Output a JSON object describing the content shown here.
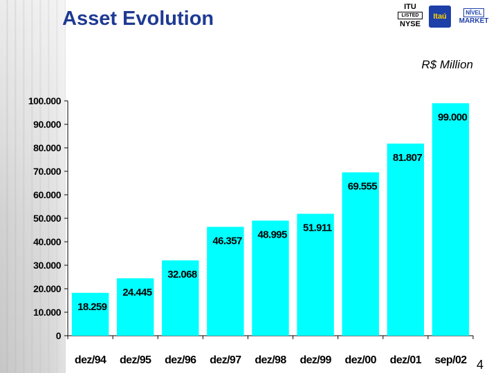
{
  "header": {
    "title": "Asset Evolution",
    "unit_label": "R$ Million",
    "page_number": "4"
  },
  "logos": {
    "itu_text": "ITU",
    "listed_text": "LISTED",
    "nyse_text": "NYSE",
    "itau_text": "Itaú",
    "market_level_text": "NÍVEL",
    "market_text": "MARKET"
  },
  "chart_data": {
    "type": "bar",
    "categories": [
      "dez/94",
      "dez/95",
      "dez/96",
      "dez/97",
      "dez/98",
      "dez/99",
      "dez/00",
      "dez/01",
      "sep/02"
    ],
    "values": [
      18259,
      24445,
      32068,
      46357,
      48995,
      51911,
      69555,
      81807,
      99000
    ],
    "data_labels": [
      "18.259",
      "24.445",
      "32.068",
      "46.357",
      "48.995",
      "51.911",
      "69.555",
      "81.807",
      "99.000"
    ],
    "y_ticks": [
      0,
      10000,
      20000,
      30000,
      40000,
      50000,
      60000,
      70000,
      80000,
      90000,
      100000
    ],
    "y_tick_labels": [
      "0",
      "10.000",
      "20.000",
      "30.000",
      "40.000",
      "50.000",
      "60.000",
      "70.000",
      "80.000",
      "90.000",
      "100.000"
    ],
    "ylim": [
      0,
      100000
    ],
    "grid": false,
    "bar_color": "#00ffff"
  }
}
